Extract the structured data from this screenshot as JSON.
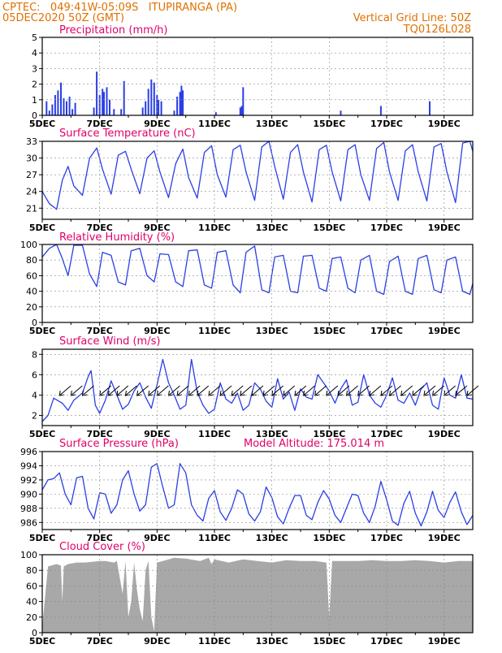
{
  "header": {
    "line1_left": "CPTEC:   049:41W-05:09S   ITUPIRANGA (PA)",
    "line2_left": "05DEC2020 50Z (GMT)",
    "line1_right": "Vertical Grid Line: 50Z",
    "line2_right": "TQ0126L028"
  },
  "colors": {
    "header": "#e07000",
    "title": "#e0006a",
    "series": "#2a3ee6",
    "cloud": "#a8a8a8",
    "grid": "#888888"
  },
  "x_tick_labels": [
    "5DEC",
    "7DEC",
    "9DEC",
    "11DEC",
    "13DEC",
    "15DEC",
    "17DEC",
    "19DEC"
  ],
  "x_tick_days": [
    0,
    2,
    4,
    6,
    8,
    10,
    12,
    14
  ],
  "chart_data": [
    {
      "type": "bar",
      "title": "Precipitation (mm/h)",
      "x_unit": "days since 05DEC",
      "ylim": [
        0,
        5
      ],
      "yticks": [
        "0",
        "1",
        "2",
        "3",
        "4",
        "5"
      ],
      "x": [
        0.15,
        0.25,
        0.35,
        0.45,
        0.55,
        0.65,
        0.75,
        0.85,
        0.95,
        1.05,
        1.15,
        1.8,
        1.9,
        2.0,
        2.1,
        2.15,
        2.25,
        2.35,
        2.5,
        2.75,
        2.85,
        3.5,
        3.6,
        3.7,
        3.8,
        3.9,
        4.0,
        4.05,
        4.15,
        4.6,
        4.7,
        4.8,
        4.85,
        4.9,
        6.05,
        6.9,
        6.95,
        7.0,
        10.4,
        11.8,
        13.5
      ],
      "values": [
        0.9,
        0.3,
        0.7,
        1.3,
        1.6,
        2.1,
        1.1,
        0.9,
        1.2,
        0.4,
        0.8,
        0.5,
        2.8,
        1.3,
        1.7,
        1.5,
        1.8,
        1.0,
        0.4,
        0.4,
        2.2,
        0.5,
        0.9,
        1.7,
        2.3,
        2.1,
        1.3,
        1.0,
        0.9,
        0.3,
        1.2,
        1.5,
        1.9,
        1.6,
        0.2,
        0.5,
        0.6,
        1.8,
        0.3,
        0.6,
        0.9
      ]
    },
    {
      "type": "line",
      "title": "Surface Temperature (nC)",
      "x_unit": "days since 05DEC",
      "ylim": [
        19,
        33
      ],
      "yticks": [
        "21",
        "24",
        "27",
        "30",
        "33"
      ],
      "x": [
        0,
        0.25,
        0.5,
        0.7,
        0.9,
        1.1,
        1.4,
        1.65,
        1.9,
        2.1,
        2.4,
        2.65,
        2.9,
        3.1,
        3.4,
        3.65,
        3.9,
        4.1,
        4.4,
        4.65,
        4.9,
        5.1,
        5.4,
        5.65,
        5.9,
        6.1,
        6.4,
        6.65,
        6.9,
        7.1,
        7.4,
        7.65,
        7.9,
        8.1,
        8.4,
        8.65,
        8.9,
        9.1,
        9.4,
        9.65,
        9.9,
        10.1,
        10.4,
        10.65,
        10.9,
        11.1,
        11.4,
        11.65,
        11.9,
        12.1,
        12.4,
        12.65,
        12.9,
        13.1,
        13.4,
        13.65,
        13.9,
        14.1,
        14.4,
        14.65,
        14.9,
        15.0
      ],
      "values": [
        24,
        21.8,
        20.8,
        26,
        28.5,
        25,
        23.3,
        30,
        31.8,
        28,
        23.5,
        30.5,
        31.2,
        28,
        23.6,
        30,
        31.3,
        27.5,
        22.9,
        29,
        31.6,
        26.5,
        22.8,
        31,
        32.2,
        27,
        23,
        31.5,
        32.3,
        27.5,
        22.4,
        32,
        33,
        28.5,
        22.6,
        31,
        32.4,
        27.5,
        22.1,
        31.5,
        32.3,
        27.5,
        22.3,
        31.5,
        32.4,
        27,
        22.4,
        31.7,
        32.8,
        27.5,
        22.4,
        31.3,
        32.4,
        27.5,
        22.3,
        32,
        32.6,
        27.5,
        22,
        32.7,
        33,
        31.2
      ]
    },
    {
      "type": "line",
      "title": "Relative Humidity (%)",
      "x_unit": "days since 05DEC",
      "ylim": [
        0,
        100
      ],
      "yticks": [
        "0",
        "20",
        "40",
        "60",
        "80",
        "100"
      ],
      "x": [
        0,
        0.25,
        0.5,
        0.7,
        0.9,
        1.1,
        1.4,
        1.65,
        1.9,
        2.1,
        2.4,
        2.65,
        2.9,
        3.1,
        3.4,
        3.65,
        3.9,
        4.1,
        4.4,
        4.65,
        4.9,
        5.1,
        5.4,
        5.65,
        5.9,
        6.1,
        6.4,
        6.65,
        6.9,
        7.1,
        7.4,
        7.65,
        7.9,
        8.1,
        8.4,
        8.65,
        8.9,
        9.1,
        9.4,
        9.65,
        9.9,
        10.1,
        10.4,
        10.65,
        10.9,
        11.1,
        11.4,
        11.65,
        11.9,
        12.1,
        12.4,
        12.65,
        12.9,
        13.1,
        13.4,
        13.65,
        13.9,
        14.1,
        14.4,
        14.65,
        14.9,
        15.0
      ],
      "values": [
        84,
        95,
        100,
        82,
        60,
        99,
        99,
        62,
        46,
        90,
        86,
        52,
        48,
        92,
        95,
        60,
        52,
        88,
        87,
        52,
        46,
        92,
        93,
        48,
        44,
        90,
        92,
        48,
        38,
        90,
        98,
        42,
        38,
        84,
        86,
        40,
        38,
        85,
        86,
        44,
        40,
        82,
        84,
        44,
        38,
        80,
        86,
        40,
        36,
        78,
        85,
        40,
        36,
        82,
        86,
        42,
        38,
        80,
        84,
        40,
        36,
        50
      ]
    },
    {
      "type": "line",
      "title": "Surface Wind (m/s)",
      "x_unit": "days since 05DEC",
      "ylim": [
        1,
        8.5
      ],
      "yticks": [
        "2",
        "4",
        "6",
        "8"
      ],
      "x": [
        0,
        0.2,
        0.4,
        0.7,
        0.9,
        1.1,
        1.4,
        1.6,
        1.7,
        1.85,
        2.0,
        2.2,
        2.4,
        2.6,
        2.8,
        3.0,
        3.2,
        3.4,
        3.6,
        3.8,
        4.0,
        4.2,
        4.4,
        4.6,
        4.8,
        5.0,
        5.2,
        5.4,
        5.6,
        5.8,
        6.0,
        6.2,
        6.4,
        6.6,
        6.8,
        7.0,
        7.2,
        7.4,
        7.6,
        7.8,
        8.0,
        8.2,
        8.4,
        8.6,
        8.8,
        9.0,
        9.2,
        9.4,
        9.6,
        9.8,
        10.0,
        10.2,
        10.4,
        10.6,
        10.8,
        11.0,
        11.2,
        11.4,
        11.6,
        11.8,
        12.0,
        12.2,
        12.4,
        12.6,
        12.8,
        13.0,
        13.2,
        13.4,
        13.6,
        13.8,
        14.0,
        14.2,
        14.4,
        14.6,
        14.8,
        15.0
      ],
      "values": [
        1.4,
        2.0,
        3.7,
        3.2,
        2.5,
        3.5,
        4.2,
        5.8,
        6.4,
        3.0,
        2.2,
        3.5,
        5.4,
        4.0,
        2.6,
        3.1,
        4.4,
        5.2,
        3.8,
        2.7,
        5.0,
        7.5,
        5.2,
        4.0,
        2.6,
        3.0,
        7.5,
        4.3,
        3.0,
        2.2,
        2.6,
        5.2,
        3.6,
        3.2,
        4.2,
        2.5,
        3.0,
        5.2,
        4.6,
        3.4,
        2.8,
        5.6,
        3.6,
        4.3,
        2.5,
        4.6,
        3.8,
        3.6,
        6.0,
        5.2,
        4.4,
        3.2,
        4.6,
        5.5,
        3.0,
        3.3,
        6.0,
        4.0,
        3.2,
        2.8,
        4.0,
        5.7,
        3.5,
        3.2,
        4.2,
        3.0,
        4.6,
        5.2,
        3.0,
        2.6,
        5.7,
        4.0,
        3.7,
        6.0,
        3.7,
        3.6
      ]
    },
    {
      "type": "line",
      "title": "Surface Pressure (hPa)",
      "annotation": "Model Altitude: 175.014 m",
      "x_unit": "days since 05DEC",
      "ylim": [
        985,
        996
      ],
      "yticks": [
        "986",
        "988",
        "990",
        "992",
        "994",
        "996"
      ],
      "x": [
        0,
        0.2,
        0.4,
        0.6,
        0.8,
        1.0,
        1.2,
        1.4,
        1.6,
        1.8,
        2.0,
        2.2,
        2.4,
        2.6,
        2.8,
        3.0,
        3.2,
        3.4,
        3.6,
        3.8,
        4.0,
        4.2,
        4.4,
        4.6,
        4.8,
        5.0,
        5.2,
        5.4,
        5.6,
        5.8,
        6.0,
        6.2,
        6.4,
        6.6,
        6.8,
        7.0,
        7.2,
        7.4,
        7.6,
        7.8,
        8.0,
        8.2,
        8.4,
        8.6,
        8.8,
        9.0,
        9.2,
        9.4,
        9.6,
        9.8,
        10.0,
        10.2,
        10.4,
        10.6,
        10.8,
        11.0,
        11.2,
        11.4,
        11.6,
        11.8,
        12.0,
        12.2,
        12.4,
        12.6,
        12.8,
        13.0,
        13.2,
        13.4,
        13.6,
        13.8,
        14.0,
        14.2,
        14.4,
        14.6,
        14.8,
        15.0
      ],
      "values": [
        990.6,
        992.0,
        992.2,
        993.0,
        990.0,
        988.5,
        992.3,
        992.5,
        988.0,
        986.5,
        990.2,
        990.0,
        987.3,
        988.5,
        992.0,
        993.3,
        990.0,
        987.6,
        988.5,
        993.8,
        994.3,
        991.0,
        988.0,
        988.5,
        994.3,
        993.0,
        988.5,
        987.0,
        986.2,
        989.4,
        990.5,
        987.5,
        986.3,
        988.0,
        990.6,
        990.0,
        987.2,
        986.2,
        987.5,
        991.0,
        989.5,
        986.8,
        985.8,
        988.0,
        989.8,
        989.8,
        987.0,
        986.4,
        988.8,
        990.5,
        989.3,
        987.0,
        986.0,
        988.0,
        990.0,
        989.8,
        987.3,
        986.0,
        988.3,
        991.8,
        989.2,
        986.2,
        985.6,
        988.7,
        990.4,
        987.3,
        985.5,
        987.5,
        990.4,
        987.7,
        986.7,
        988.8,
        990.3,
        987.5,
        985.7,
        987.0
      ]
    },
    {
      "type": "area",
      "title": "Cloud Cover (%)",
      "x_unit": "days since 05DEC",
      "ylim": [
        0,
        100
      ],
      "yticks": [
        "0",
        "20",
        "40",
        "60",
        "80",
        "100"
      ],
      "x": [
        0,
        0.2,
        0.5,
        0.65,
        0.7,
        0.75,
        0.9,
        1.2,
        1.5,
        2.0,
        2.2,
        2.5,
        2.6,
        2.8,
        2.9,
        3.0,
        3.1,
        3.2,
        3.3,
        3.4,
        3.5,
        3.6,
        3.7,
        3.8,
        3.9,
        4.0,
        4.2,
        4.6,
        5.0,
        5.5,
        5.8,
        5.9,
        6.0,
        6.5,
        7.0,
        7.5,
        8.0,
        8.5,
        9.0,
        9.5,
        9.9,
        10.0,
        10.1,
        10.5,
        11.0,
        11.5,
        12.0,
        12.5,
        13.0,
        13.5,
        14.0,
        14.5,
        15.0
      ],
      "values": [
        8,
        85,
        88,
        86,
        40,
        85,
        88,
        90,
        90,
        92,
        92,
        90,
        92,
        50,
        92,
        20,
        40,
        90,
        55,
        30,
        15,
        80,
        92,
        20,
        2,
        90,
        92,
        96,
        95,
        92,
        96,
        88,
        94,
        90,
        94,
        92,
        90,
        93,
        92,
        92,
        90,
        20,
        92,
        92,
        92,
        93,
        92,
        92,
        93,
        92,
        90,
        92,
        92
      ]
    }
  ]
}
